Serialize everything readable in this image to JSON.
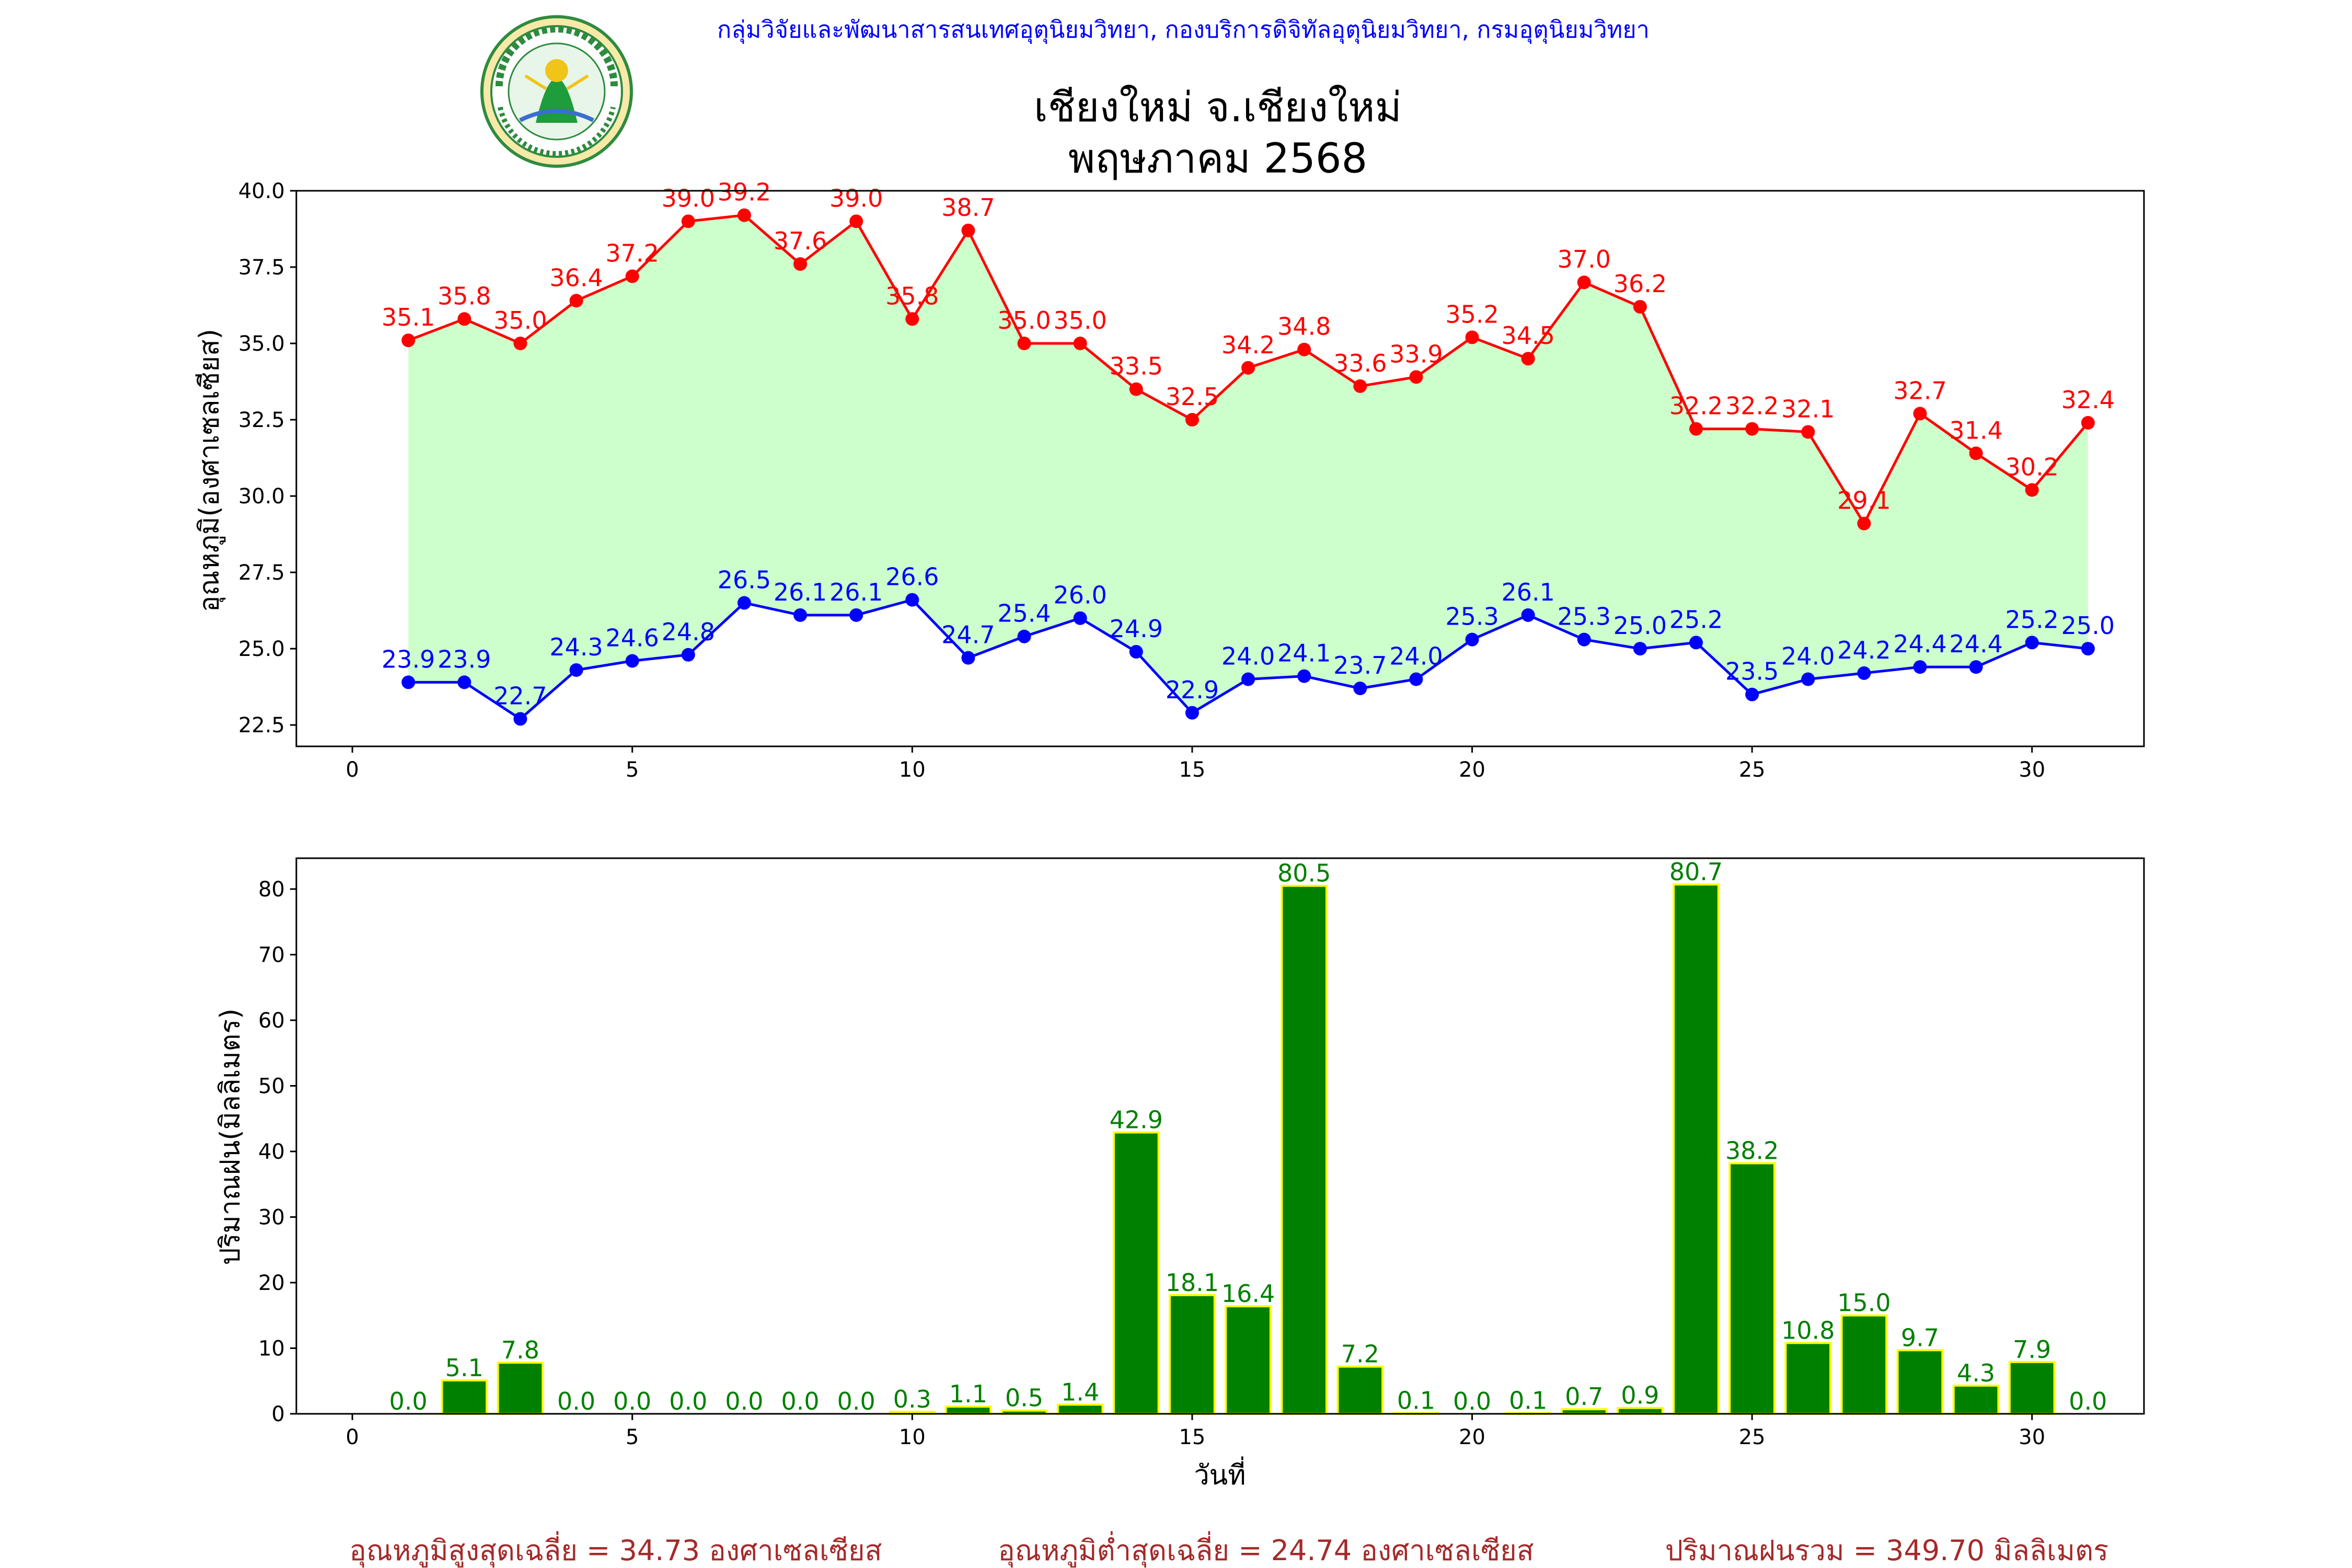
{
  "header": {
    "agency": "กลุ่มวิจัยและพัฒนาสารสนเทศอุตุนิยมวิทยา, กองบริการดิจิทัลอุตุนิยมวิทยา, กรมอุตุนิยมวิทยา",
    "title_line1": "เชียงใหม่ จ.เชียงใหม่",
    "title_line2": "พฤษภาคม 2568",
    "logo_text": "กรมอุตุนิยมวิทยา METEOROLOGICAL DEPARTMENT"
  },
  "colors": {
    "max_line": "#ff0000",
    "min_line": "#0000ff",
    "fill": "#ccffcc",
    "bar": "#008000",
    "bar_edge": "#ffff00",
    "bar_label": "#008000",
    "header": "#0000ff",
    "footer": "#a52a2a"
  },
  "chart_data": [
    {
      "type": "line",
      "ylabel": "อุณหภูมิ(องศาเซลเซียส)",
      "xlim": [
        -1,
        32
      ],
      "ylim": [
        21.8,
        40.0
      ],
      "xticks": [
        0,
        5,
        10,
        15,
        20,
        25,
        30
      ],
      "yticks": [
        22.5,
        25.0,
        27.5,
        30.0,
        32.5,
        35.0,
        37.5,
        40.0
      ],
      "ytick_labels": [
        "22.5",
        "25.0",
        "27.5",
        "30.0",
        "32.5",
        "35.0",
        "37.5",
        "40.0"
      ],
      "x": [
        1,
        2,
        3,
        4,
        5,
        6,
        7,
        8,
        9,
        10,
        11,
        12,
        13,
        14,
        15,
        16,
        17,
        18,
        19,
        20,
        21,
        22,
        23,
        24,
        25,
        26,
        27,
        28,
        29,
        30,
        31
      ],
      "series": [
        {
          "key": "max",
          "values": [
            35.1,
            35.8,
            35.0,
            36.4,
            37.2,
            39.0,
            39.2,
            37.6,
            39.0,
            35.8,
            38.7,
            35.0,
            35.0,
            33.5,
            32.5,
            34.2,
            34.8,
            33.6,
            33.9,
            35.2,
            34.5,
            37.0,
            36.2,
            32.2,
            32.2,
            32.1,
            29.1,
            32.7,
            31.4,
            30.2,
            32.4
          ]
        },
        {
          "key": "min",
          "values": [
            23.9,
            23.9,
            22.7,
            24.3,
            24.6,
            24.8,
            26.5,
            26.1,
            26.1,
            26.6,
            24.7,
            25.4,
            26.0,
            24.9,
            22.9,
            24.0,
            24.1,
            23.7,
            24.0,
            25.3,
            26.1,
            25.3,
            25.0,
            25.2,
            23.5,
            24.0,
            24.2,
            24.4,
            24.4,
            25.2,
            25.0
          ]
        }
      ],
      "grid": false
    },
    {
      "type": "bar",
      "xlabel": "วันที่",
      "ylabel": "ปริมาณฝน(มิลลิเมตร)",
      "xlim": [
        -1,
        32
      ],
      "ylim": [
        0,
        84.7
      ],
      "xticks": [
        0,
        5,
        10,
        15,
        20,
        25,
        30
      ],
      "yticks": [
        0,
        10,
        20,
        30,
        40,
        50,
        60,
        70,
        80
      ],
      "x": [
        1,
        2,
        3,
        4,
        5,
        6,
        7,
        8,
        9,
        10,
        11,
        12,
        13,
        14,
        15,
        16,
        17,
        18,
        19,
        20,
        21,
        22,
        23,
        24,
        25,
        26,
        27,
        28,
        29,
        30,
        31
      ],
      "values": [
        0.0,
        5.1,
        7.8,
        0.0,
        0.0,
        0.0,
        0.0,
        0.0,
        0.0,
        0.3,
        1.1,
        0.5,
        1.4,
        42.9,
        18.1,
        16.4,
        80.5,
        7.2,
        0.1,
        0.0,
        0.1,
        0.7,
        0.9,
        80.7,
        38.2,
        10.8,
        15.0,
        9.7,
        4.3,
        7.9,
        0.0
      ],
      "grid": false
    }
  ],
  "footer": {
    "avg_max": "อุณหภูมิสูงสุดเฉลี่ย = 34.73 องศาเซลเซียส",
    "avg_min": "อุณหภูมิต่ำสุดเฉลี่ย = 24.74 องศาเซลเซียส",
    "total_rain": "ปริมาณฝนรวม = 349.70 มิลลิเมตร"
  }
}
